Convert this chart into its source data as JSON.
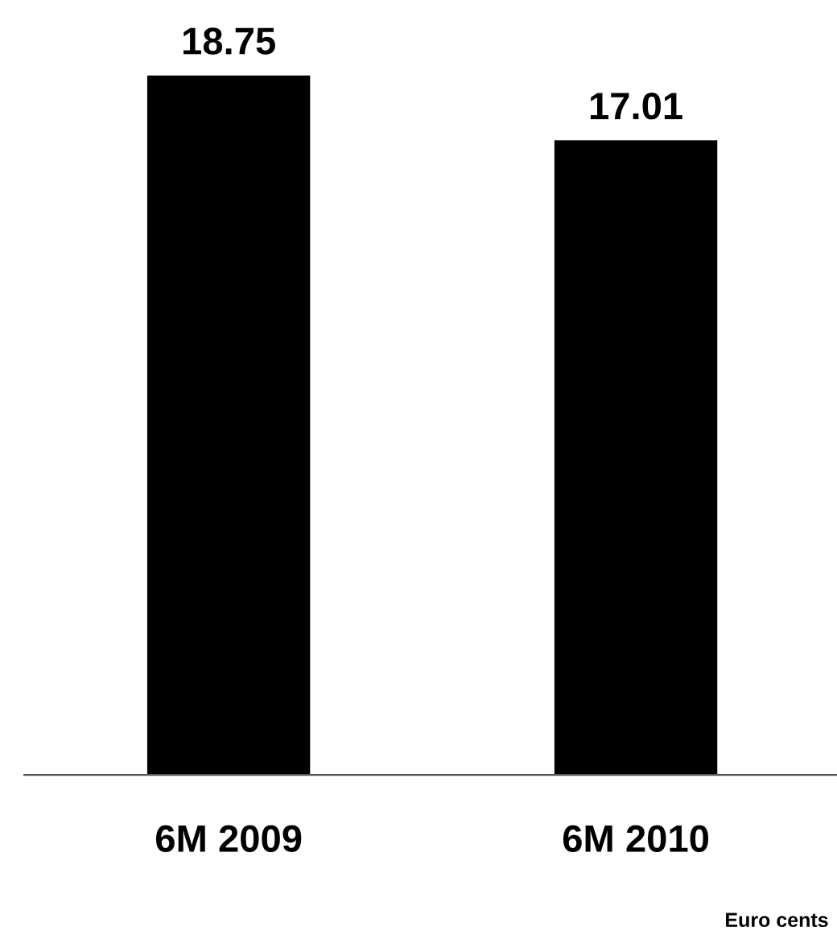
{
  "chart_data": {
    "type": "bar",
    "categories": [
      "6M 2009",
      "6M 2010"
    ],
    "values": [
      18.75,
      17.01
    ],
    "color": "#000000",
    "data_labels": true,
    "annotations": [
      "Euro cents"
    ]
  }
}
